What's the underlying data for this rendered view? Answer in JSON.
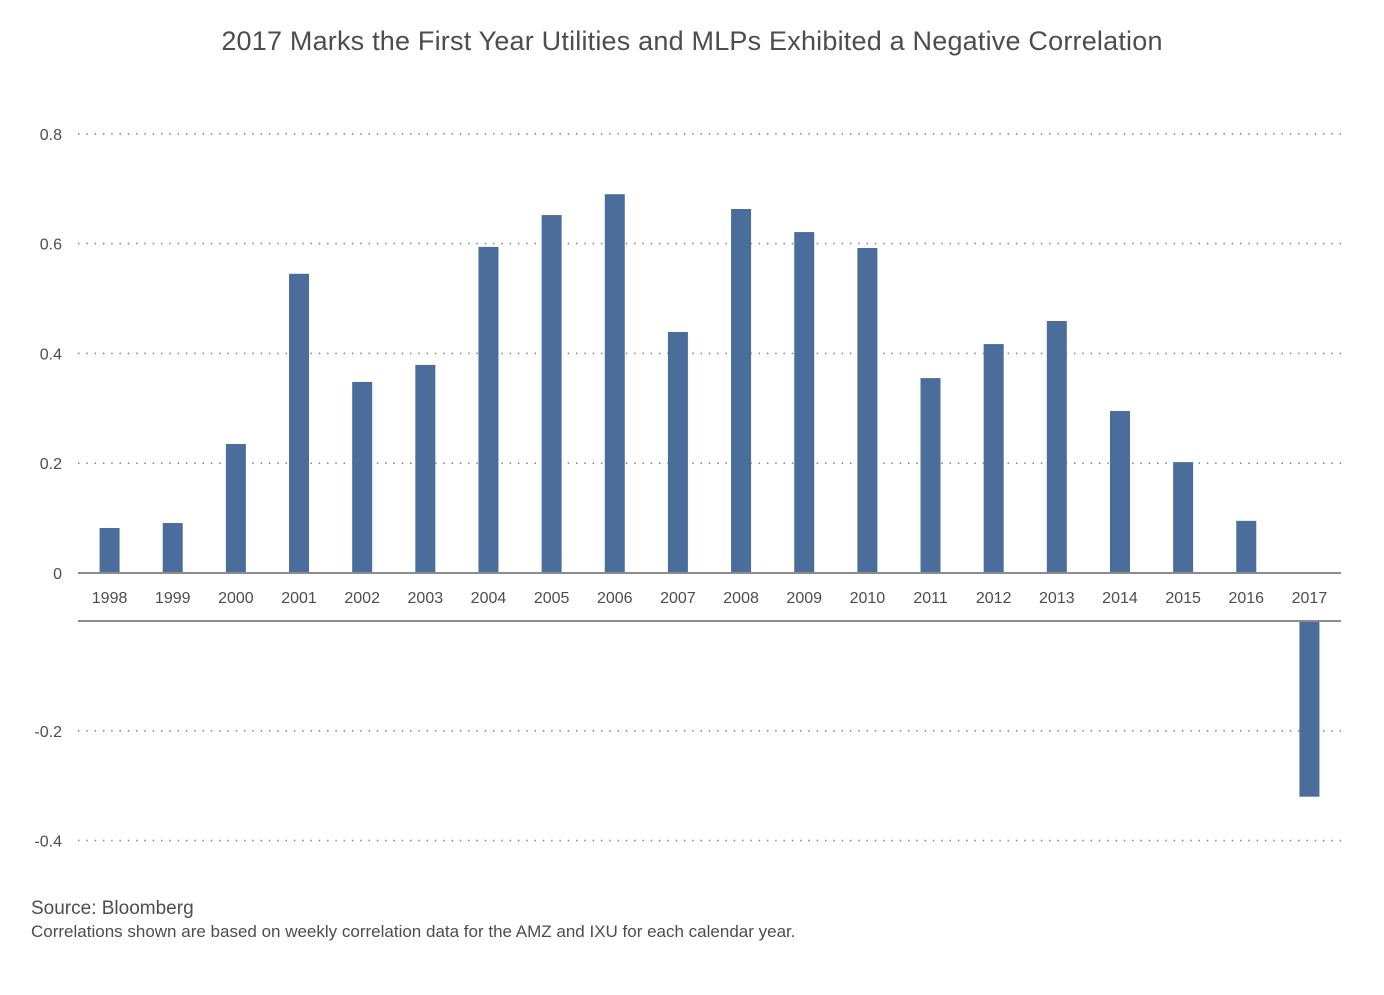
{
  "chart_data": {
    "type": "bar",
    "title": "2017 Marks the First Year Utilities and MLPs Exhibited a Negative Correlation",
    "xlabel": "",
    "ylabel": "",
    "categories": [
      "1998",
      "1999",
      "2000",
      "2001",
      "2002",
      "2003",
      "2004",
      "2005",
      "2006",
      "2007",
      "2008",
      "2009",
      "2010",
      "2011",
      "2012",
      "2013",
      "2014",
      "2015",
      "2016",
      "2017"
    ],
    "values": [
      0.082,
      0.091,
      0.235,
      0.545,
      0.348,
      0.379,
      0.594,
      0.652,
      0.69,
      0.439,
      0.663,
      0.621,
      0.592,
      0.355,
      0.417,
      0.459,
      0.295,
      0.202,
      0.095,
      -0.32
    ],
    "ylim": [
      -0.4,
      0.8
    ],
    "yticks_positive": [
      "0",
      "0.2",
      "0.4",
      "0.6",
      "0.8"
    ],
    "yticks_positive_values": [
      0,
      0.2,
      0.4,
      0.6,
      0.8
    ],
    "yticks_negative": [
      "-0.2",
      "-0.4"
    ],
    "yticks_negative_values": [
      -0.2,
      -0.4
    ],
    "grid": true,
    "legend": "none",
    "bar_color": "#4b6d9b"
  },
  "footer": {
    "source": "Source: Bloomberg",
    "note": "Correlations shown are based on weekly correlation data for the AMZ and IXU for each calendar year."
  }
}
